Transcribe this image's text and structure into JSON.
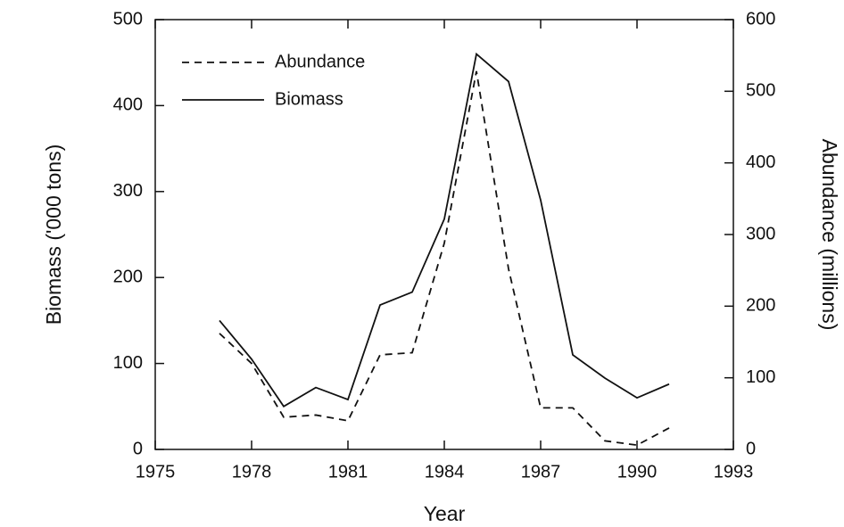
{
  "chart_data": {
    "type": "line",
    "x_label": "Year",
    "y_label": "Biomass ('000 tons)",
    "y2_label": "Abundance (millions)",
    "x": [
      1977,
      1978,
      1979,
      1980,
      1981,
      1982,
      1983,
      1984,
      1985,
      1986,
      1987,
      1988,
      1989,
      1990,
      1991
    ],
    "series": [
      {
        "name": "Abundance",
        "color": "#111111",
        "dash": true,
        "axis": "y2",
        "values": [
          162,
          120,
          45,
          48,
          40,
          132,
          135,
          288,
          528,
          252,
          58,
          58,
          12,
          6,
          30
        ]
      },
      {
        "name": "Biomass",
        "color": "#111111",
        "dash": false,
        "values": [
          150,
          105,
          50,
          72,
          58,
          168,
          183,
          268,
          460,
          428,
          290,
          110,
          83,
          60,
          76
        ]
      }
    ],
    "xlim": [
      1975,
      1993
    ],
    "xticks": [
      1975,
      1978,
      1981,
      1984,
      1987,
      1990,
      1993
    ],
    "ylim": [
      0,
      500
    ],
    "yticks": [
      0,
      100,
      200,
      300,
      400,
      500
    ],
    "y2lim": [
      0,
      600
    ],
    "y2ticks": [
      0,
      100,
      200,
      300,
      400,
      500,
      600
    ],
    "legend": "upper left"
  }
}
